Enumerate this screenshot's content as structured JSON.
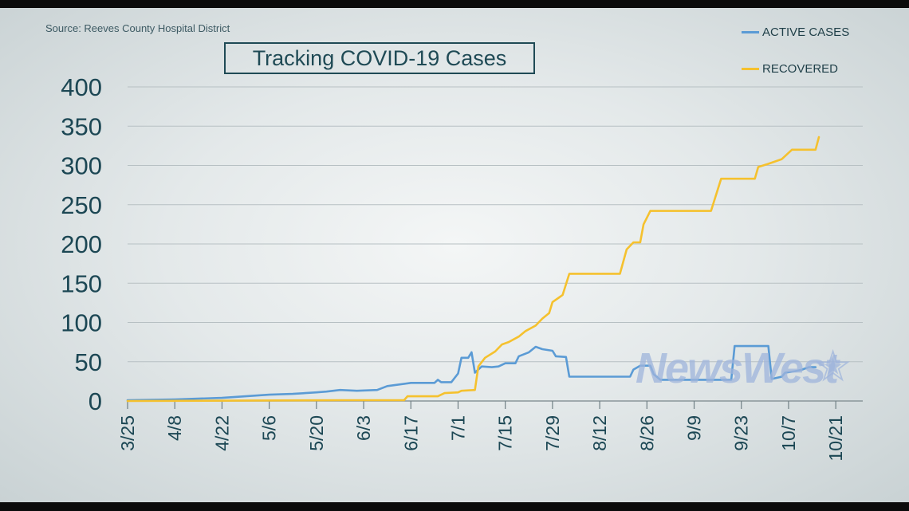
{
  "chart_data": {
    "type": "line",
    "title": "Tracking COVID-19 Cases",
    "source": "Source: Reeves County Hospital District",
    "watermark": "NewsWest",
    "xlabel": "",
    "ylabel": "",
    "ylim": [
      0,
      400
    ],
    "yticks": [
      0,
      50,
      100,
      150,
      200,
      250,
      300,
      350,
      400
    ],
    "xticks": [
      "3/25",
      "4/8",
      "4/22",
      "5/6",
      "5/20",
      "6/3",
      "6/17",
      "7/1",
      "7/15",
      "7/29",
      "8/12",
      "8/26",
      "9/9",
      "9/23",
      "10/7",
      "10/21"
    ],
    "x_range": [
      "3/25",
      "10/29"
    ],
    "grid": "horizontal",
    "legend_position": "top-right",
    "series": [
      {
        "name": "ACTIVE CASES",
        "color": "#5b9bd5",
        "points": [
          [
            "3/25",
            1
          ],
          [
            "4/8",
            2
          ],
          [
            "4/22",
            4
          ],
          [
            "4/29",
            6
          ],
          [
            "5/6",
            8
          ],
          [
            "5/13",
            9
          ],
          [
            "5/20",
            11
          ],
          [
            "5/23",
            12
          ],
          [
            "5/27",
            14
          ],
          [
            "6/1",
            13
          ],
          [
            "6/7",
            14
          ],
          [
            "6/10",
            19
          ],
          [
            "6/17",
            23
          ],
          [
            "6/24",
            23
          ],
          [
            "6/25",
            27
          ],
          [
            "6/26",
            24
          ],
          [
            "6/29",
            24
          ],
          [
            "7/1",
            35
          ],
          [
            "7/2",
            55
          ],
          [
            "7/4",
            55
          ],
          [
            "7/5",
            62
          ],
          [
            "7/6",
            36
          ],
          [
            "7/8",
            44
          ],
          [
            "7/11",
            43
          ],
          [
            "7/13",
            44
          ],
          [
            "7/15",
            48
          ],
          [
            "7/18",
            48
          ],
          [
            "7/19",
            57
          ],
          [
            "7/22",
            62
          ],
          [
            "7/24",
            69
          ],
          [
            "7/26",
            66
          ],
          [
            "7/29",
            64
          ],
          [
            "7/30",
            57
          ],
          [
            "8/2",
            56
          ],
          [
            "8/3",
            31
          ],
          [
            "8/21",
            31
          ],
          [
            "8/22",
            40
          ],
          [
            "8/24",
            45
          ],
          [
            "8/27",
            45
          ],
          [
            "8/28",
            34
          ],
          [
            "8/30",
            27
          ],
          [
            "9/20",
            27
          ],
          [
            "9/21",
            70
          ],
          [
            "9/25",
            70
          ],
          [
            "10/1",
            70
          ],
          [
            "10/2",
            28
          ],
          [
            "10/5",
            31
          ],
          [
            "10/6",
            36
          ],
          [
            "10/9",
            38
          ],
          [
            "10/11",
            40
          ],
          [
            "10/13",
            43
          ],
          [
            "10/15",
            43
          ]
        ]
      },
      {
        "name": "RECOVERED",
        "color": "#f5c12e",
        "points": [
          [
            "3/25",
            0
          ],
          [
            "5/28",
            1
          ],
          [
            "6/15",
            1
          ],
          [
            "6/16",
            6
          ],
          [
            "6/25",
            6
          ],
          [
            "6/27",
            10
          ],
          [
            "7/1",
            11
          ],
          [
            "7/2",
            13
          ],
          [
            "7/6",
            14
          ],
          [
            "7/7",
            44
          ],
          [
            "7/9",
            55
          ],
          [
            "7/12",
            63
          ],
          [
            "7/14",
            72
          ],
          [
            "7/16",
            75
          ],
          [
            "7/19",
            82
          ],
          [
            "7/21",
            89
          ],
          [
            "7/24",
            96
          ],
          [
            "7/26",
            105
          ],
          [
            "7/28",
            112
          ],
          [
            "7/29",
            126
          ],
          [
            "7/31",
            132
          ],
          [
            "8/1",
            135
          ],
          [
            "8/3",
            162
          ],
          [
            "8/18",
            162
          ],
          [
            "8/20",
            193
          ],
          [
            "8/22",
            202
          ],
          [
            "8/24",
            202
          ],
          [
            "8/25",
            225
          ],
          [
            "8/27",
            242
          ],
          [
            "9/14",
            242
          ],
          [
            "9/17",
            283
          ],
          [
            "9/27",
            283
          ],
          [
            "9/28",
            298
          ],
          [
            "10/1",
            302
          ],
          [
            "10/5",
            308
          ],
          [
            "10/8",
            320
          ],
          [
            "10/15",
            320
          ],
          [
            "10/16",
            336
          ]
        ]
      }
    ]
  }
}
